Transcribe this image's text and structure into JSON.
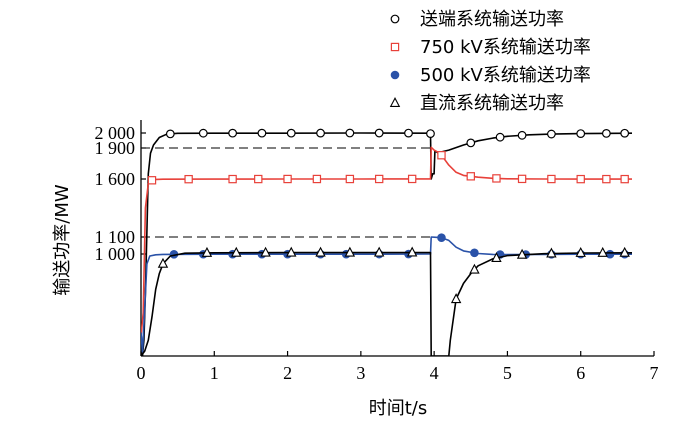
{
  "chart_data": {
    "type": "line",
    "xlabel": "时间t/s",
    "ylabel": "输送功率/MW",
    "xlim": [
      0,
      7
    ],
    "x_ticks": [
      "0",
      "1",
      "2",
      "3",
      "4",
      "5",
      "6",
      "7"
    ],
    "y_ticks": [
      "2 000",
      "1 900",
      "1 600",
      "1 100",
      "1 000"
    ],
    "y_tick_values": [
      2000,
      1900,
      1600,
      1100,
      1000
    ],
    "y_axis_scale": "nonlinear, lower part compressed",
    "reference_lines": [
      {
        "y": 1900,
        "style": "dashed"
      },
      {
        "y": 1100,
        "style": "dashed"
      }
    ],
    "grid": false,
    "legend_position": "top-right",
    "series": [
      {
        "name": "送端系统输送功率",
        "color": "#000000",
        "marker": "circle-open",
        "points": [
          [
            0,
            600
          ],
          [
            0.02,
            480
          ],
          [
            0.04,
            560
          ],
          [
            0.06,
            800
          ],
          [
            0.1,
            1650
          ],
          [
            0.13,
            1850
          ],
          [
            0.17,
            1920
          ],
          [
            0.25,
            1970
          ],
          [
            0.35,
            1992
          ],
          [
            0.5,
            1998
          ],
          [
            1.0,
            1999
          ],
          [
            2.0,
            1999
          ],
          [
            3.0,
            2000
          ],
          [
            3.9,
            1999
          ],
          [
            3.95,
            1996
          ],
          [
            3.96,
            1600
          ],
          [
            3.98,
            1650
          ],
          [
            4.0,
            1650
          ],
          [
            4.01,
            1870
          ],
          [
            4.05,
            1855
          ],
          [
            4.1,
            1862
          ],
          [
            4.2,
            1880
          ],
          [
            4.4,
            1920
          ],
          [
            4.6,
            1948
          ],
          [
            4.8,
            1966
          ],
          [
            5.0,
            1978
          ],
          [
            5.3,
            1988
          ],
          [
            5.6,
            1993
          ],
          [
            6.0,
            1996
          ],
          [
            6.5,
            1998
          ],
          [
            6.7,
            1999
          ]
        ],
        "markers_x": [
          0.4,
          0.85,
          1.25,
          1.65,
          2.05,
          2.45,
          2.85,
          3.25,
          3.65,
          3.95,
          4.5,
          4.9,
          5.2,
          5.6,
          6.0,
          6.35,
          6.6
        ]
      },
      {
        "name": "750 kV系统输送功率",
        "color": "#e8413a",
        "marker": "square-open",
        "points": [
          [
            0,
            580
          ],
          [
            0.03,
            700
          ],
          [
            0.06,
            1350
          ],
          [
            0.1,
            1560
          ],
          [
            0.13,
            1583
          ],
          [
            0.17,
            1595
          ],
          [
            0.3,
            1598
          ],
          [
            1.0,
            1599
          ],
          [
            2.0,
            1600
          ],
          [
            3.0,
            1600
          ],
          [
            3.95,
            1601
          ],
          [
            3.96,
            1905
          ],
          [
            4.0,
            1880
          ],
          [
            4.05,
            1860
          ],
          [
            4.1,
            1830
          ],
          [
            4.2,
            1735
          ],
          [
            4.3,
            1665
          ],
          [
            4.4,
            1635
          ],
          [
            4.6,
            1617
          ],
          [
            4.8,
            1607
          ],
          [
            5.0,
            1602
          ],
          [
            5.5,
            1600
          ],
          [
            6.0,
            1599
          ],
          [
            6.7,
            1599
          ]
        ],
        "markers_x": [
          0.15,
          0.65,
          1.25,
          1.6,
          2.0,
          2.4,
          2.85,
          3.25,
          3.7,
          4.1,
          4.5,
          4.85,
          5.2,
          5.6,
          6.0,
          6.35,
          6.6
        ]
      },
      {
        "name": "500 kV系统输送功率",
        "color": "#2a52a8",
        "marker": "circle-filled",
        "points": [
          [
            0,
            600
          ],
          [
            0.02,
            500
          ],
          [
            0.04,
            640
          ],
          [
            0.08,
            950
          ],
          [
            0.12,
            990
          ],
          [
            0.2,
            996
          ],
          [
            0.3,
            998
          ],
          [
            1.0,
            999
          ],
          [
            2.0,
            999
          ],
          [
            3.0,
            999
          ],
          [
            3.95,
            1000
          ],
          [
            3.96,
            1100
          ],
          [
            4.0,
            1099
          ],
          [
            4.1,
            1096
          ],
          [
            4.2,
            1080
          ],
          [
            4.3,
            1040
          ],
          [
            4.4,
            1018
          ],
          [
            4.6,
            1003
          ],
          [
            4.8,
            998
          ],
          [
            5.0,
            997
          ],
          [
            5.5,
            998
          ],
          [
            6.0,
            999
          ],
          [
            6.7,
            999
          ]
        ],
        "markers_x": [
          0.45,
          0.85,
          1.25,
          1.65,
          2.0,
          2.45,
          2.8,
          3.25,
          3.65,
          4.1,
          4.55,
          4.9,
          5.25,
          5.6,
          6.0,
          6.4,
          6.6
        ]
      },
      {
        "name": "直流系统输送功率",
        "color": "#000000",
        "marker": "triangle-open",
        "points": [
          [
            0,
            480
          ],
          [
            0.05,
            505
          ],
          [
            0.1,
            560
          ],
          [
            0.15,
            680
          ],
          [
            0.2,
            820
          ],
          [
            0.25,
            900
          ],
          [
            0.3,
            950
          ],
          [
            0.4,
            990
          ],
          [
            0.6,
            1005
          ],
          [
            1.0,
            1007
          ],
          [
            2.0,
            1008
          ],
          [
            3.0,
            1008
          ],
          [
            3.95,
            1009
          ],
          [
            3.96,
            480
          ],
          [
            4.2,
            480
          ],
          [
            4.22,
            560
          ],
          [
            4.3,
            770
          ],
          [
            4.4,
            850
          ],
          [
            4.5,
            900
          ],
          [
            4.6,
            940
          ],
          [
            4.8,
            975
          ],
          [
            5.0,
            992
          ],
          [
            5.5,
            1002
          ],
          [
            6.0,
            1006
          ],
          [
            6.7,
            1007
          ]
        ],
        "markers_x": [
          0.3,
          0.9,
          1.3,
          1.7,
          2.05,
          2.45,
          2.85,
          3.25,
          3.7,
          4.3,
          4.55,
          4.85,
          5.2,
          5.6,
          6.0,
          6.3,
          6.6
        ]
      }
    ]
  }
}
